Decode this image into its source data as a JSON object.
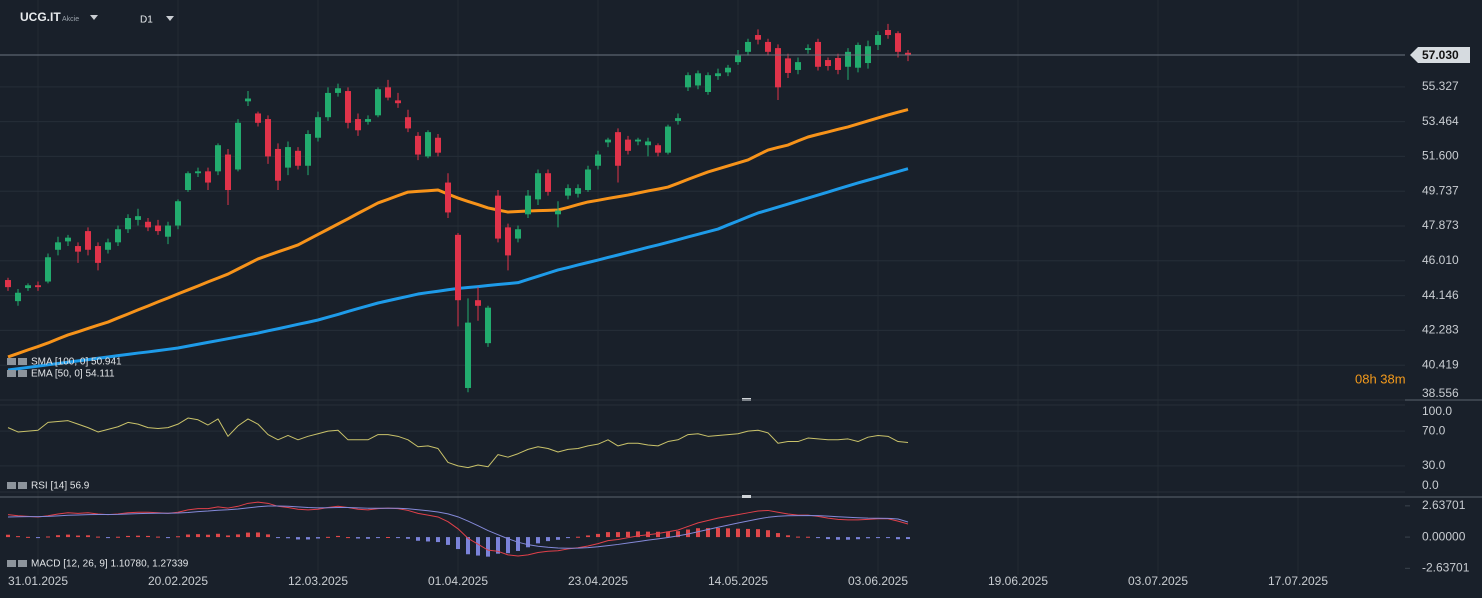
{
  "chart_data": [
    {
      "type": "candlestick",
      "title": "UCG.IT",
      "subtitle": "Akcie",
      "timeframe": "D1",
      "open": [
        44.98,
        43.85,
        44.55,
        44.7,
        44.9,
        46.6,
        47.05,
        46.8,
        47.6,
        46.8,
        46.6,
        47.0,
        47.7,
        48.2,
        48.1,
        47.9,
        47.3,
        47.9,
        49.8,
        50.7,
        50.8,
        50.8,
        51.7,
        50.9,
        54.55,
        53.9,
        53.6,
        52.0,
        51.0,
        51.9,
        51.1,
        52.6,
        53.7,
        55.0,
        55.1,
        53.6,
        53.45,
        53.8,
        55.3,
        54.6,
        53.7,
        52.7,
        51.6,
        52.6,
        50.2,
        47.4,
        39.2,
        43.9,
        41.6,
        49.5,
        47.8,
        47.2,
        48.5,
        49.3,
        50.7,
        48.5,
        49.5,
        49.6,
        49.8,
        51.1,
        52.35,
        52.9,
        52.5,
        52.4,
        52.2,
        52.2,
        51.8,
        53.5,
        55.3,
        55.4,
        55.05,
        55.9,
        56.1,
        56.65,
        57.2,
        58.1,
        57.73,
        57.4,
        56.85,
        56.23,
        57.3,
        57.73,
        56.76,
        56.87,
        56.4,
        56.35,
        56.6,
        57.57,
        58.37,
        58.2,
        57.15
      ],
      "high": [
        45.1,
        44.5,
        44.8,
        44.9,
        46.4,
        47.3,
        47.4,
        47.0,
        47.8,
        47.0,
        47.2,
        47.9,
        48.5,
        48.8,
        48.3,
        48.2,
        48.1,
        49.3,
        50.8,
        51.0,
        51.0,
        52.3,
        52.0,
        53.6,
        55.1,
        54.0,
        53.8,
        52.3,
        52.4,
        52.1,
        53.0,
        54.0,
        55.3,
        55.5,
        55.3,
        53.9,
        53.8,
        55.3,
        55.7,
        55.0,
        54.1,
        52.9,
        53.0,
        52.8,
        50.7,
        47.5,
        44.0,
        44.6,
        43.6,
        49.8,
        48.0,
        47.9,
        49.8,
        50.9,
        50.9,
        49.2,
        50.1,
        50.1,
        51.1,
        51.9,
        52.6,
        53.1,
        52.7,
        52.6,
        52.6,
        52.3,
        53.3,
        53.9,
        56.1,
        56.2,
        56.1,
        56.3,
        56.5,
        57.3,
        57.9,
        58.4,
        57.9,
        57.6,
        57.1,
        56.9,
        57.6,
        57.9,
        56.9,
        57.1,
        57.4,
        57.7,
        57.8,
        58.3,
        58.7,
        58.3,
        57.3
      ],
      "low": [
        44.4,
        43.6,
        44.4,
        44.4,
        44.8,
        46.3,
        46.8,
        45.9,
        46.3,
        45.5,
        46.4,
        46.8,
        47.5,
        47.9,
        47.6,
        47.4,
        46.9,
        47.7,
        49.7,
        50.5,
        49.8,
        50.6,
        49.0,
        50.8,
        54.3,
        53.2,
        51.2,
        49.8,
        50.6,
        50.9,
        50.6,
        52.4,
        53.5,
        54.8,
        53.1,
        52.7,
        53.3,
        53.7,
        54.6,
        54.2,
        52.9,
        51.4,
        51.5,
        51.6,
        48.3,
        42.5,
        38.97,
        42.8,
        41.4,
        47.0,
        45.5,
        47.0,
        48.3,
        49.0,
        49.5,
        47.8,
        49.3,
        49.4,
        49.7,
        50.9,
        52.1,
        50.2,
        51.7,
        52.2,
        51.6,
        51.6,
        51.7,
        53.3,
        55.1,
        55.2,
        54.9,
        55.7,
        55.9,
        56.5,
        57.0,
        57.6,
        57.0,
        54.62,
        55.8,
        56.0,
        57.1,
        56.2,
        56.2,
        56.0,
        55.7,
        56.1,
        56.3,
        57.3,
        57.9,
        56.9,
        56.7
      ],
      "close": [
        44.6,
        44.3,
        44.7,
        44.6,
        46.2,
        47.0,
        47.25,
        46.5,
        46.6,
        45.9,
        47.0,
        47.7,
        48.3,
        48.4,
        47.8,
        47.6,
        47.9,
        49.2,
        50.7,
        50.8,
        50.2,
        52.2,
        49.8,
        53.4,
        54.7,
        53.4,
        51.6,
        50.3,
        52.1,
        51.1,
        52.8,
        53.7,
        55.0,
        55.25,
        53.4,
        53.0,
        53.6,
        55.2,
        54.75,
        54.45,
        53.1,
        51.7,
        52.9,
        51.8,
        48.6,
        43.9,
        42.7,
        43.6,
        43.5,
        47.2,
        46.3,
        47.7,
        49.5,
        50.7,
        49.7,
        48.7,
        49.9,
        49.9,
        50.9,
        51.7,
        52.5,
        51.1,
        51.9,
        52.5,
        52.4,
        51.8,
        53.2,
        53.65,
        55.95,
        56.05,
        55.95,
        56.05,
        56.35,
        57.0,
        57.73,
        57.85,
        57.2,
        55.3,
        56.07,
        56.65,
        57.4,
        56.4,
        56.44,
        56.23,
        57.2,
        57.57,
        57.5,
        58.1,
        58.1,
        57.2,
        57.03
      ],
      "up_color": "#22ab6e",
      "down_color": "#e0334a",
      "series": [
        {
          "name": "SMA [100, 0] 50.941",
          "color": "#1e9be9",
          "values": [
            40.16,
            40.23,
            40.3,
            40.37,
            40.44,
            40.51,
            40.58,
            40.65,
            40.72,
            40.79,
            40.86,
            40.93,
            41.0,
            41.07,
            41.13,
            41.2,
            41.27,
            41.34,
            41.44,
            41.54,
            41.64,
            41.74,
            41.84,
            41.94,
            42.04,
            42.14,
            42.26,
            42.37,
            42.49,
            42.61,
            42.72,
            42.84,
            42.99,
            43.14,
            43.3,
            43.45,
            43.6,
            43.75,
            43.87,
            43.99,
            44.11,
            44.23,
            44.31,
            44.38,
            44.46,
            44.53,
            44.58,
            44.63,
            44.69,
            44.74,
            44.79,
            44.84,
            45.01,
            45.18,
            45.35,
            45.52,
            45.65,
            45.79,
            45.92,
            46.05,
            46.19,
            46.32,
            46.46,
            46.59,
            46.73,
            46.86,
            47.0,
            47.14,
            47.29,
            47.43,
            47.57,
            47.71,
            47.93,
            48.14,
            48.36,
            48.57,
            48.73,
            48.89,
            49.05,
            49.21,
            49.37,
            49.53,
            49.69,
            49.86,
            50.02,
            50.18,
            50.33,
            50.48,
            50.64,
            50.79,
            50.941
          ]
        },
        {
          "name": "EMA [50, 0] 54.111",
          "color": "#f7931a",
          "values": [
            40.86,
            41.05,
            41.24,
            41.42,
            41.61,
            41.83,
            42.04,
            42.21,
            42.39,
            42.56,
            42.73,
            42.95,
            43.16,
            43.38,
            43.59,
            43.81,
            44.02,
            44.24,
            44.45,
            44.66,
            44.88,
            45.09,
            45.3,
            45.57,
            45.84,
            46.11,
            46.3,
            46.49,
            46.67,
            46.86,
            47.14,
            47.42,
            47.7,
            47.98,
            48.26,
            48.55,
            48.83,
            49.11,
            49.3,
            49.5,
            49.69,
            49.73,
            49.76,
            49.8,
            49.58,
            49.37,
            49.19,
            49.02,
            48.84,
            48.73,
            48.62,
            48.65,
            48.68,
            48.7,
            48.71,
            48.73,
            48.87,
            49.02,
            49.16,
            49.25,
            49.35,
            49.44,
            49.53,
            49.64,
            49.75,
            49.85,
            49.96,
            50.16,
            50.37,
            50.57,
            50.77,
            50.93,
            51.09,
            51.25,
            51.41,
            51.68,
            51.94,
            52.08,
            52.21,
            52.43,
            52.64,
            52.78,
            52.91,
            53.05,
            53.18,
            53.34,
            53.5,
            53.66,
            53.82,
            53.97,
            54.111
          ]
        }
      ],
      "ylim": [
        38.556,
        59.976
      ],
      "yticks": [
        38.556,
        40.419,
        42.283,
        44.146,
        {
          "value": 46.01,
          "label": "46.010"
        },
        47.873,
        49.737,
        {
          "value": 51.6,
          "label": "51.600"
        },
        53.464,
        55.327
      ],
      "grid": true,
      "last_price": {
        "value": 57.03,
        "label": "57.030"
      },
      "countdown": "08h 38m",
      "date_labels": [
        "31.01.2025",
        "20.02.2025",
        "12.03.2025",
        "01.04.2025",
        "23.04.2025",
        "14.05.2025",
        "03.06.2025",
        "19.06.2025",
        "03.07.2025",
        "17.07.2025"
      ]
    },
    {
      "type": "line",
      "series": [
        {
          "name": "RSI [14] 56.9",
          "color": "#c9c26a",
          "values": [
            74,
            69,
            70,
            71,
            80,
            81,
            82,
            78,
            74,
            69,
            72,
            75,
            80,
            78,
            74,
            73,
            74,
            78,
            85,
            83,
            77,
            84,
            64,
            76,
            84,
            78,
            66,
            60,
            65,
            60,
            64,
            67,
            70,
            71,
            60,
            60,
            60,
            66,
            66,
            64,
            60,
            52,
            53,
            50,
            34,
            30,
            28,
            31,
            29,
            43,
            40,
            44,
            49,
            52,
            50,
            46,
            49,
            50,
            53,
            55,
            60,
            53,
            56,
            56,
            54,
            53,
            58,
            60,
            66,
            67,
            64,
            65,
            66,
            67,
            70,
            71,
            68,
            56,
            58,
            58,
            62,
            61,
            60,
            60,
            61,
            58,
            63,
            65,
            64,
            58,
            56.9
          ]
        }
      ],
      "ylim": [
        0,
        100
      ],
      "yticks": [
        {
          "value": 0,
          "label": "0.0"
        },
        {
          "value": 30,
          "label": "30.0"
        },
        {
          "value": 70,
          "label": "70.0"
        },
        {
          "value": 100,
          "label": "100.0"
        }
      ],
      "grid": true
    },
    {
      "type": "macd",
      "series": [
        {
          "name": "MACD [12, 26, 9] 1.10780, 1.27339",
          "color": "#e0404a",
          "values": [
            1.9,
            1.8,
            1.75,
            1.7,
            1.8,
            1.95,
            2.05,
            2.0,
            2.05,
            1.95,
            1.9,
            1.95,
            2.05,
            2.1,
            2.1,
            2.05,
            2.0,
            2.1,
            2.3,
            2.4,
            2.4,
            2.55,
            2.45,
            2.6,
            2.85,
            2.95,
            2.85,
            2.6,
            2.5,
            2.35,
            2.3,
            2.35,
            2.5,
            2.6,
            2.5,
            2.35,
            2.3,
            2.4,
            2.45,
            2.4,
            2.25,
            2.0,
            1.85,
            1.7,
            1.3,
            0.7,
            -0.1,
            -0.6,
            -1.1,
            -1.2,
            -1.5,
            -1.6,
            -1.5,
            -1.3,
            -1.2,
            -1.15,
            -1.0,
            -0.9,
            -0.75,
            -0.55,
            -0.3,
            -0.2,
            -0.05,
            0.1,
            0.2,
            0.3,
            0.45,
            0.6,
            0.9,
            1.2,
            1.4,
            1.6,
            1.75,
            1.9,
            2.05,
            2.2,
            2.25,
            2.1,
            1.95,
            1.85,
            1.85,
            1.75,
            1.6,
            1.5,
            1.45,
            1.45,
            1.5,
            1.55,
            1.55,
            1.35,
            1.1078
          ]
        },
        {
          "color": "#8489d8",
          "values": [
            1.7,
            1.72,
            1.73,
            1.73,
            1.75,
            1.79,
            1.84,
            1.87,
            1.9,
            1.91,
            1.91,
            1.92,
            1.95,
            1.98,
            2.0,
            2.01,
            2.01,
            2.03,
            2.08,
            2.15,
            2.2,
            2.27,
            2.31,
            2.37,
            2.47,
            2.56,
            2.62,
            2.62,
            2.6,
            2.55,
            2.5,
            2.47,
            2.48,
            2.5,
            2.5,
            2.47,
            2.44,
            2.43,
            2.44,
            2.43,
            2.39,
            2.31,
            2.22,
            2.12,
            1.96,
            1.71,
            1.35,
            0.96,
            0.55,
            0.2,
            -0.14,
            -0.43,
            -0.64,
            -0.77,
            -0.86,
            -0.92,
            -0.94,
            -0.93,
            -0.89,
            -0.82,
            -0.72,
            -0.62,
            -0.5,
            -0.38,
            -0.26,
            -0.15,
            -0.03,
            0.1,
            0.26,
            0.45,
            0.64,
            0.83,
            1.01,
            1.19,
            1.36,
            1.53,
            1.67,
            1.76,
            1.8,
            1.81,
            1.82,
            1.81,
            1.77,
            1.72,
            1.67,
            1.63,
            1.6,
            1.59,
            1.58,
            1.53,
            1.27339
          ]
        }
      ],
      "histogram": {
        "positive_color": "#e0484a",
        "negative_color": "#7b83d9",
        "values": [
          0.2,
          0.08,
          0.02,
          -0.03,
          0.05,
          0.16,
          0.21,
          0.13,
          0.15,
          0.04,
          -0.01,
          0.03,
          0.1,
          0.12,
          0.1,
          0.04,
          -0.01,
          0.07,
          0.22,
          0.25,
          0.2,
          0.28,
          0.14,
          0.23,
          0.38,
          0.39,
          0.23,
          -0.02,
          -0.1,
          -0.2,
          -0.2,
          -0.12,
          0.02,
          0.1,
          0,
          -0.12,
          -0.14,
          -0.03,
          0.01,
          -0.03,
          -0.14,
          -0.31,
          -0.37,
          -0.42,
          -0.66,
          -1.01,
          -1.45,
          -1.56,
          -1.65,
          -1.4,
          -1.36,
          -1.17,
          -0.86,
          -0.53,
          -0.34,
          -0.23,
          -0.06,
          0.03,
          0.14,
          0.27,
          0.42,
          0.42,
          0.45,
          0.48,
          0.46,
          0.45,
          0.48,
          0.5,
          0.64,
          0.75,
          0.76,
          0.77,
          0.74,
          0.71,
          0.69,
          0.67,
          0.58,
          0.34,
          0.15,
          0.04,
          0.03,
          -0.06,
          -0.17,
          -0.22,
          -0.22,
          -0.18,
          -0.1,
          -0.04,
          -0.03,
          -0.18,
          -0.16559
        ]
      },
      "ylim": [
        -3.2,
        3.3
      ],
      "yticks": [
        {
          "value": -2.63701,
          "label": "-2.63701"
        },
        {
          "value": 0,
          "label": "0.00000"
        },
        {
          "value": 2.63701,
          "label": "2.63701"
        }
      ],
      "grid": false
    }
  ]
}
